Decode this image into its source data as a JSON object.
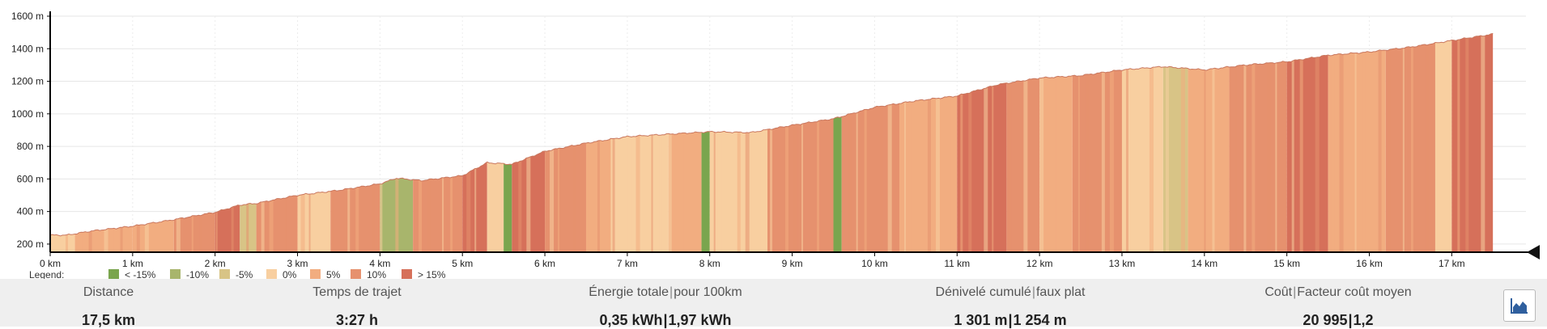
{
  "chart_data": {
    "type": "area",
    "title": "",
    "xlabel": "",
    "ylabel": "",
    "x_unit": "km",
    "y_unit": "m",
    "xlim": [
      0,
      17.9
    ],
    "ylim": [
      150,
      1600
    ],
    "grid": true,
    "x_ticks": [
      "0 km",
      "1 km",
      "2 km",
      "3 km",
      "4 km",
      "5 km",
      "6 km",
      "7 km",
      "8 km",
      "9 km",
      "10 km",
      "11 km",
      "12 km",
      "13 km",
      "14 km",
      "15 km",
      "16 km",
      "17 km"
    ],
    "y_ticks": [
      "200 m",
      "400 m",
      "600 m",
      "800 m",
      "1000 m",
      "1200 m",
      "1400 m",
      "1600 m"
    ],
    "legend_title": "Legend:",
    "legend_position": "bottom-left",
    "legend": [
      {
        "label": "< -15%",
        "color": "#7aa54e"
      },
      {
        "label": "-10%",
        "color": "#a8b56c"
      },
      {
        "label": "-5%",
        "color": "#d8c486"
      },
      {
        "label": "0%",
        "color": "#f8cfa0"
      },
      {
        "label": "5%",
        "color": "#f2ad80"
      },
      {
        "label": "10%",
        "color": "#e6916e"
      },
      {
        "label": "> 15%",
        "color": "#d6705a"
      }
    ],
    "elevation_profile": {
      "distance_km": [
        0,
        0.2,
        0.5,
        1.0,
        1.5,
        2.0,
        2.3,
        2.5,
        3.0,
        3.5,
        4.0,
        4.2,
        4.5,
        5.0,
        5.3,
        5.6,
        6.0,
        6.5,
        7.0,
        7.5,
        8.0,
        8.5,
        9.0,
        9.5,
        10.0,
        10.5,
        11.0,
        11.5,
        12.0,
        12.5,
        13.0,
        13.5,
        14.0,
        14.5,
        15.0,
        15.5,
        16.0,
        16.5,
        17.0,
        17.5
      ],
      "elevation_m": [
        255,
        255,
        280,
        310,
        350,
        395,
        440,
        450,
        500,
        530,
        570,
        605,
        590,
        620,
        700,
        690,
        770,
        820,
        860,
        875,
        890,
        885,
        930,
        970,
        1040,
        1080,
        1110,
        1180,
        1220,
        1235,
        1270,
        1290,
        1270,
        1300,
        1320,
        1360,
        1380,
        1410,
        1450,
        1490
      ]
    },
    "grade_segments": [
      {
        "from": 0,
        "to": 0.3,
        "grade": "0%"
      },
      {
        "from": 0.3,
        "to": 1.0,
        "grade": "5%"
      },
      {
        "from": 1.0,
        "to": 1.5,
        "grade": "5%"
      },
      {
        "from": 1.5,
        "to": 2.0,
        "grade": "10%"
      },
      {
        "from": 2.0,
        "to": 2.3,
        "grade": "> 15%"
      },
      {
        "from": 2.3,
        "to": 2.5,
        "grade": "-5%"
      },
      {
        "from": 2.5,
        "to": 3.0,
        "grade": "10%"
      },
      {
        "from": 3.0,
        "to": 3.4,
        "grade": "0%"
      },
      {
        "from": 3.4,
        "to": 4.0,
        "grade": "10%"
      },
      {
        "from": 4.0,
        "to": 4.4,
        "grade": "-10%"
      },
      {
        "from": 4.4,
        "to": 5.0,
        "grade": "10%"
      },
      {
        "from": 5.0,
        "to": 5.3,
        "grade": "> 15%"
      },
      {
        "from": 5.3,
        "to": 5.5,
        "grade": "0%"
      },
      {
        "from": 5.5,
        "to": 5.6,
        "grade": "< -15%"
      },
      {
        "from": 5.6,
        "to": 6.0,
        "grade": "> 15%"
      },
      {
        "from": 6.0,
        "to": 6.5,
        "grade": "10%"
      },
      {
        "from": 6.5,
        "to": 6.8,
        "grade": "5%"
      },
      {
        "from": 6.8,
        "to": 7.5,
        "grade": "0%"
      },
      {
        "from": 7.5,
        "to": 7.9,
        "grade": "5%"
      },
      {
        "from": 7.9,
        "to": 8.0,
        "grade": "< -15%"
      },
      {
        "from": 8.0,
        "to": 8.7,
        "grade": "0%"
      },
      {
        "from": 8.7,
        "to": 9.5,
        "grade": "10%"
      },
      {
        "from": 9.5,
        "to": 9.6,
        "grade": "< -15%"
      },
      {
        "from": 9.6,
        "to": 10.3,
        "grade": "10%"
      },
      {
        "from": 10.3,
        "to": 11.0,
        "grade": "5%"
      },
      {
        "from": 11.0,
        "to": 11.6,
        "grade": "> 15%"
      },
      {
        "from": 11.6,
        "to": 12.0,
        "grade": "10%"
      },
      {
        "from": 12.0,
        "to": 12.4,
        "grade": "5%"
      },
      {
        "from": 12.4,
        "to": 13.0,
        "grade": "10%"
      },
      {
        "from": 13.0,
        "to": 13.5,
        "grade": "0%"
      },
      {
        "from": 13.5,
        "to": 13.8,
        "grade": "-5%"
      },
      {
        "from": 13.8,
        "to": 14.3,
        "grade": "5%"
      },
      {
        "from": 14.3,
        "to": 15.0,
        "grade": "10%"
      },
      {
        "from": 15.0,
        "to": 15.5,
        "grade": "> 15%"
      },
      {
        "from": 15.5,
        "to": 16.2,
        "grade": "5%"
      },
      {
        "from": 16.2,
        "to": 16.8,
        "grade": "10%"
      },
      {
        "from": 16.8,
        "to": 17.0,
        "grade": "0%"
      },
      {
        "from": 17.0,
        "to": 17.5,
        "grade": "> 15%"
      }
    ]
  },
  "stats": [
    {
      "label": "Distance",
      "value": "17,5 km"
    },
    {
      "label_a": "Temps de trajet",
      "value": "3:27 h"
    },
    {
      "label_a": "Énergie totale",
      "label_b": "pour 100km",
      "value_a": "0,35 kWh",
      "value_b": "1,97 kWh"
    },
    {
      "label_a": "Dénivelé cumulé",
      "label_b": "faux plat",
      "value_a": "1 301 m",
      "value_b": "1 254 m"
    },
    {
      "label_a": "Coût",
      "label_b": "Facteur coût moyen",
      "value_a": "20 995",
      "value_b": "1,2"
    }
  ],
  "separator": "|",
  "controls": {
    "profile_toggle_icon": "area-chart-icon",
    "position_marker_icon": "triangle-marker-icon"
  }
}
